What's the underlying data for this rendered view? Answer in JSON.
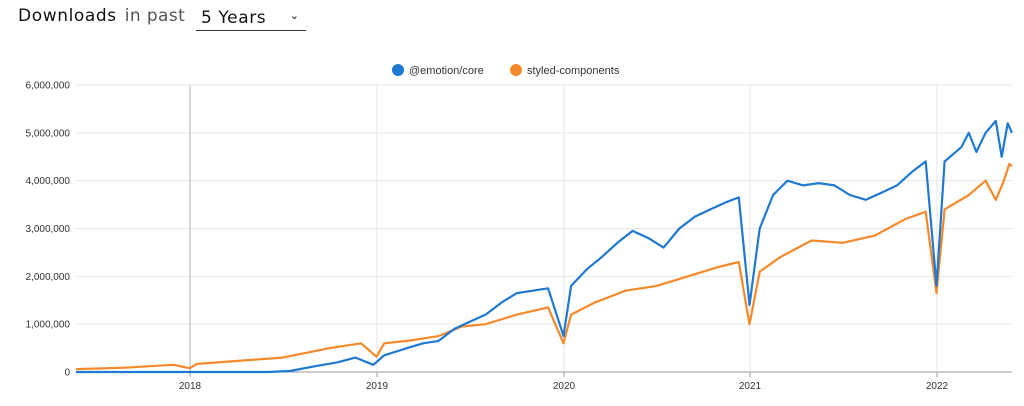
{
  "header": {
    "title": "Downloads",
    "subtitle": "in past",
    "period": "5 Years"
  },
  "chart_data": {
    "type": "line",
    "x_ticks": [
      "2018",
      "2019",
      "2020",
      "2021",
      "2022"
    ],
    "y_ticks": [
      "0",
      "1,000,000",
      "2,000,000",
      "3,000,000",
      "4,000,000",
      "5,000,000",
      "6,000,000"
    ],
    "ylim": [
      0,
      6000000
    ],
    "grid": true,
    "legend_position": "top",
    "series": [
      {
        "name": "@emotion/core",
        "color": "#1f78d1",
        "points": [
          [
            "2017-06-01",
            0
          ],
          [
            "2018-01-01",
            0
          ],
          [
            "2018-06-01",
            0
          ],
          [
            "2018-07-15",
            20000
          ],
          [
            "2018-09-01",
            120000
          ],
          [
            "2018-10-15",
            200000
          ],
          [
            "2018-11-20",
            300000
          ],
          [
            "2018-12-25",
            150000
          ],
          [
            "2019-01-15",
            350000
          ],
          [
            "2019-03-01",
            500000
          ],
          [
            "2019-04-01",
            600000
          ],
          [
            "2019-05-01",
            650000
          ],
          [
            "2019-06-01",
            900000
          ],
          [
            "2019-07-01",
            1050000
          ],
          [
            "2019-08-01",
            1200000
          ],
          [
            "2019-09-01",
            1450000
          ],
          [
            "2019-10-01",
            1650000
          ],
          [
            "2019-11-01",
            1700000
          ],
          [
            "2019-12-01",
            1750000
          ],
          [
            "2019-12-31",
            750000
          ],
          [
            "2020-01-15",
            1800000
          ],
          [
            "2020-02-15",
            2150000
          ],
          [
            "2020-03-15",
            2400000
          ],
          [
            "2020-04-15",
            2700000
          ],
          [
            "2020-05-15",
            2950000
          ],
          [
            "2020-06-15",
            2800000
          ],
          [
            "2020-07-15",
            2600000
          ],
          [
            "2020-08-15",
            3000000
          ],
          [
            "2020-09-15",
            3250000
          ],
          [
            "2020-10-15",
            3400000
          ],
          [
            "2020-11-15",
            3550000
          ],
          [
            "2020-12-10",
            3650000
          ],
          [
            "2020-12-31",
            1400000
          ],
          [
            "2021-01-20",
            3000000
          ],
          [
            "2021-02-15",
            3700000
          ],
          [
            "2021-03-15",
            4000000
          ],
          [
            "2021-04-15",
            3900000
          ],
          [
            "2021-05-15",
            3950000
          ],
          [
            "2021-06-15",
            3900000
          ],
          [
            "2021-07-15",
            3700000
          ],
          [
            "2021-08-15",
            3600000
          ],
          [
            "2021-09-15",
            3750000
          ],
          [
            "2021-10-15",
            3900000
          ],
          [
            "2021-11-15",
            4200000
          ],
          [
            "2021-12-10",
            4400000
          ],
          [
            "2021-12-31",
            1800000
          ],
          [
            "2022-01-15",
            4400000
          ],
          [
            "2022-02-15",
            4700000
          ],
          [
            "2022-03-01",
            5000000
          ],
          [
            "2022-03-15",
            4600000
          ],
          [
            "2022-04-01",
            5000000
          ],
          [
            "2022-04-20",
            5250000
          ],
          [
            "2022-05-01",
            4500000
          ],
          [
            "2022-05-12",
            5200000
          ],
          [
            "2022-05-20",
            5000000
          ]
        ]
      },
      {
        "name": "styled-components",
        "color": "#f5892a",
        "points": [
          [
            "2017-06-01",
            60000
          ],
          [
            "2017-09-01",
            90000
          ],
          [
            "2017-12-01",
            150000
          ],
          [
            "2017-12-31",
            80000
          ],
          [
            "2018-01-15",
            170000
          ],
          [
            "2018-04-01",
            230000
          ],
          [
            "2018-07-01",
            300000
          ],
          [
            "2018-10-01",
            500000
          ],
          [
            "2018-12-01",
            600000
          ],
          [
            "2018-12-31",
            320000
          ],
          [
            "2019-01-15",
            600000
          ],
          [
            "2019-03-01",
            650000
          ],
          [
            "2019-05-01",
            750000
          ],
          [
            "2019-06-15",
            950000
          ],
          [
            "2019-08-01",
            1000000
          ],
          [
            "2019-10-01",
            1200000
          ],
          [
            "2019-12-01",
            1350000
          ],
          [
            "2019-12-31",
            600000
          ],
          [
            "2020-01-15",
            1200000
          ],
          [
            "2020-03-01",
            1450000
          ],
          [
            "2020-05-01",
            1700000
          ],
          [
            "2020-07-01",
            1800000
          ],
          [
            "2020-09-01",
            2000000
          ],
          [
            "2020-11-01",
            2200000
          ],
          [
            "2020-12-10",
            2300000
          ],
          [
            "2020-12-31",
            1000000
          ],
          [
            "2021-01-20",
            2100000
          ],
          [
            "2021-03-01",
            2400000
          ],
          [
            "2021-05-01",
            2750000
          ],
          [
            "2021-07-01",
            2700000
          ],
          [
            "2021-09-01",
            2850000
          ],
          [
            "2021-11-01",
            3200000
          ],
          [
            "2021-12-10",
            3350000
          ],
          [
            "2021-12-31",
            1650000
          ],
          [
            "2022-01-15",
            3400000
          ],
          [
            "2022-03-01",
            3700000
          ],
          [
            "2022-04-01",
            4000000
          ],
          [
            "2022-04-20",
            3600000
          ],
          [
            "2022-05-05",
            4000000
          ],
          [
            "2022-05-15",
            4350000
          ],
          [
            "2022-05-20",
            4300000
          ]
        ]
      }
    ]
  }
}
